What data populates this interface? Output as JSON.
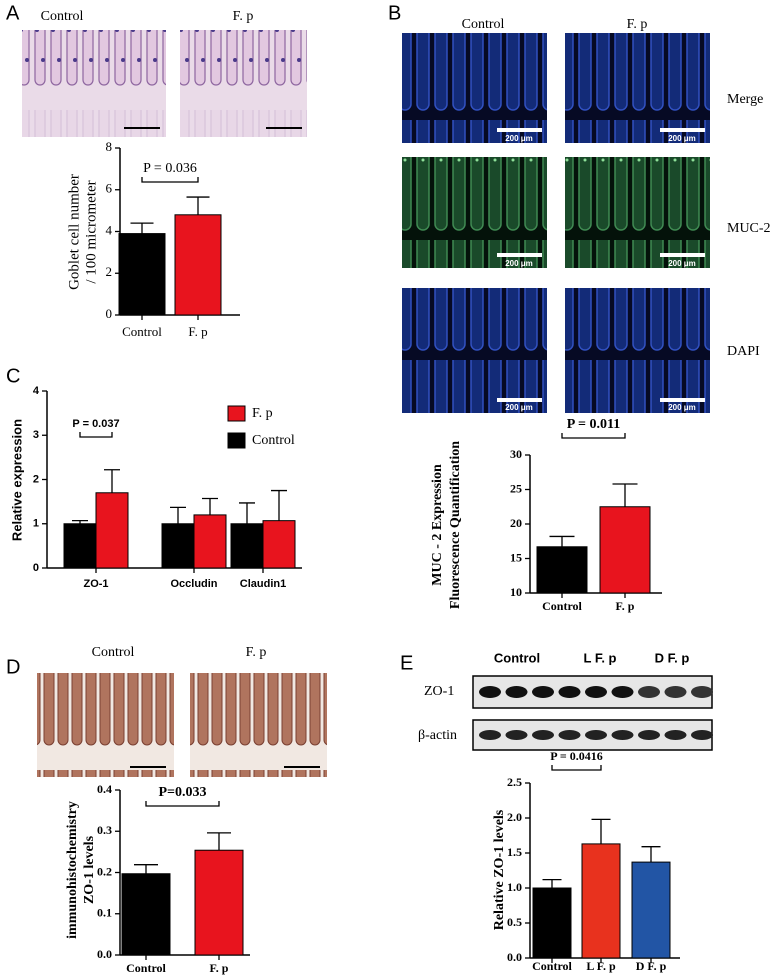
{
  "panel_labels": [
    "A",
    "B",
    "C",
    "D",
    "E"
  ],
  "panel_a": {
    "image_labels": [
      "Control",
      "F. p"
    ]
  },
  "panel_b": {
    "image_labels": [
      "Control",
      "F. p"
    ],
    "row_labels": [
      "Merge",
      "MUC-2",
      "DAPI"
    ],
    "scale_label": "200 μm"
  },
  "panel_d": {
    "image_labels": [
      "Control",
      "F. p"
    ]
  },
  "panel_e": {
    "group_labels": [
      "Control",
      "L F. p",
      "D F. p"
    ],
    "blot_labels": [
      "ZO-1",
      "β-actin"
    ]
  },
  "chart_data": [
    {
      "type": "bar",
      "y_label": [
        "Goblet cell number",
        "/ 100 micrometer"
      ],
      "categories": [
        "Control",
        "F. p"
      ],
      "values": [
        3.9,
        4.8
      ],
      "errors": [
        0.5,
        0.85
      ],
      "colors": [
        "#000000",
        "#e8141e"
      ],
      "ylim": [
        0,
        8
      ],
      "yticks": [
        0,
        2,
        4,
        6,
        8
      ],
      "annotation": "P = 0.036"
    },
    {
      "type": "bar",
      "y_label": [
        "Relative expression"
      ],
      "categories": [
        "ZO-1",
        "Occludin",
        "Claudin1"
      ],
      "series": [
        {
          "name": "Control",
          "color": "#000000",
          "values": [
            1.0,
            1.0,
            1.0
          ],
          "errors": [
            0.07,
            0.37,
            0.47
          ]
        },
        {
          "name": "F. p",
          "color": "#e8141e",
          "values": [
            1.7,
            1.2,
            1.07
          ],
          "errors": [
            0.52,
            0.37,
            0.68
          ]
        }
      ],
      "ylim": [
        0,
        4
      ],
      "yticks": [
        0,
        1,
        2,
        3,
        4
      ],
      "annotation": "P = 0.037",
      "legend": "top-right"
    },
    {
      "type": "bar",
      "y_label": [
        "MUC - 2 Expression",
        "Fluorescence Quantification"
      ],
      "categories": [
        "Control",
        "F. p"
      ],
      "values": [
        16.7,
        22.5
      ],
      "errors": [
        1.5,
        3.3
      ],
      "colors": [
        "#000000",
        "#e8141e"
      ],
      "ylim": [
        10,
        30
      ],
      "yticks": [
        10,
        15,
        20,
        25,
        30
      ],
      "annotation": "P =  0.011"
    },
    {
      "type": "bar",
      "y_label": [
        "immunohistochemistry",
        "ZO-1 levels"
      ],
      "categories": [
        "Control",
        "F. p"
      ],
      "values": [
        0.197,
        0.254
      ],
      "errors": [
        0.022,
        0.042
      ],
      "colors": [
        "#000000",
        "#e8141e"
      ],
      "ylim": [
        0,
        0.4
      ],
      "yticks": [
        {
          "value": 0,
          "label": "0.0"
        },
        0.1,
        0.2,
        0.3,
        0.4
      ],
      "annotation": "P=0.033"
    },
    {
      "type": "bar",
      "y_label": [
        "Relative ZO-1 levels"
      ],
      "categories": [
        "Control",
        "L F. p",
        "D F. p"
      ],
      "values": [
        1.0,
        1.63,
        1.37
      ],
      "errors": [
        0.12,
        0.35,
        0.22
      ],
      "colors": [
        "#000000",
        "#e8321e",
        "#2255a5"
      ],
      "ylim": [
        0,
        2.5
      ],
      "yticks": [
        {
          "value": 0,
          "label": "0.0"
        },
        0.5,
        {
          "value": 1,
          "label": "1.0"
        },
        1.5,
        {
          "value": 2,
          "label": "2.0"
        },
        2.5
      ],
      "annotation": "P = 0.0416"
    }
  ]
}
